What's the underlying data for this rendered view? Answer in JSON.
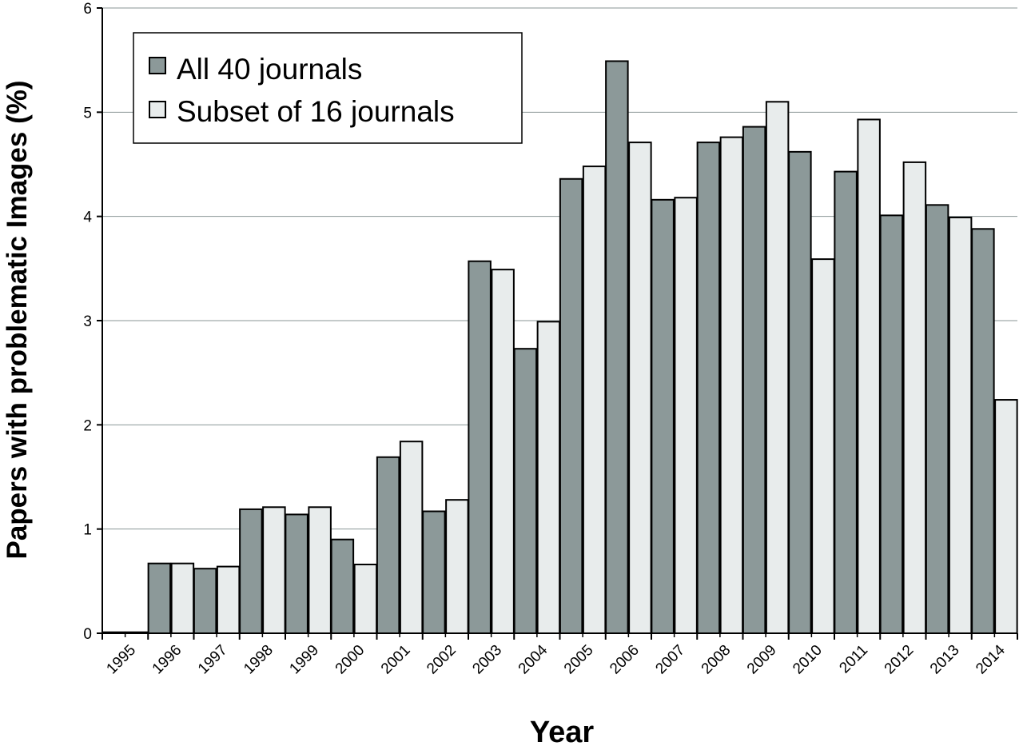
{
  "chart_data": {
    "type": "bar",
    "title": "",
    "xlabel": "Year",
    "ylabel": "Papers with problematic Images (%)",
    "ylim": [
      0,
      6
    ],
    "yticks": [
      "0",
      "1",
      "2",
      "3",
      "4",
      "5",
      "6"
    ],
    "grid": true,
    "legend_position": "top-left",
    "categories": [
      "1995",
      "1996",
      "1997",
      "1998",
      "1999",
      "2000",
      "2001",
      "2002",
      "2003",
      "2004",
      "2005",
      "2006",
      "2007",
      "2008",
      "2009",
      "2010",
      "2011",
      "2012",
      "2013",
      "2014"
    ],
    "series": [
      {
        "name": "All 40 journals",
        "color": "#8c9999",
        "values": [
          0.01,
          0.67,
          0.62,
          1.19,
          1.14,
          0.9,
          1.69,
          1.17,
          3.57,
          2.73,
          4.36,
          5.49,
          4.16,
          4.71,
          4.86,
          4.62,
          4.43,
          4.01,
          4.11,
          3.88
        ]
      },
      {
        "name": "Subset of 16 journals",
        "color": "#e8ecec",
        "values": [
          0.01,
          0.67,
          0.64,
          1.21,
          1.21,
          0.66,
          1.84,
          1.28,
          3.49,
          2.99,
          4.48,
          4.71,
          4.18,
          4.76,
          5.1,
          3.59,
          4.93,
          4.52,
          3.99,
          2.24
        ]
      }
    ]
  }
}
